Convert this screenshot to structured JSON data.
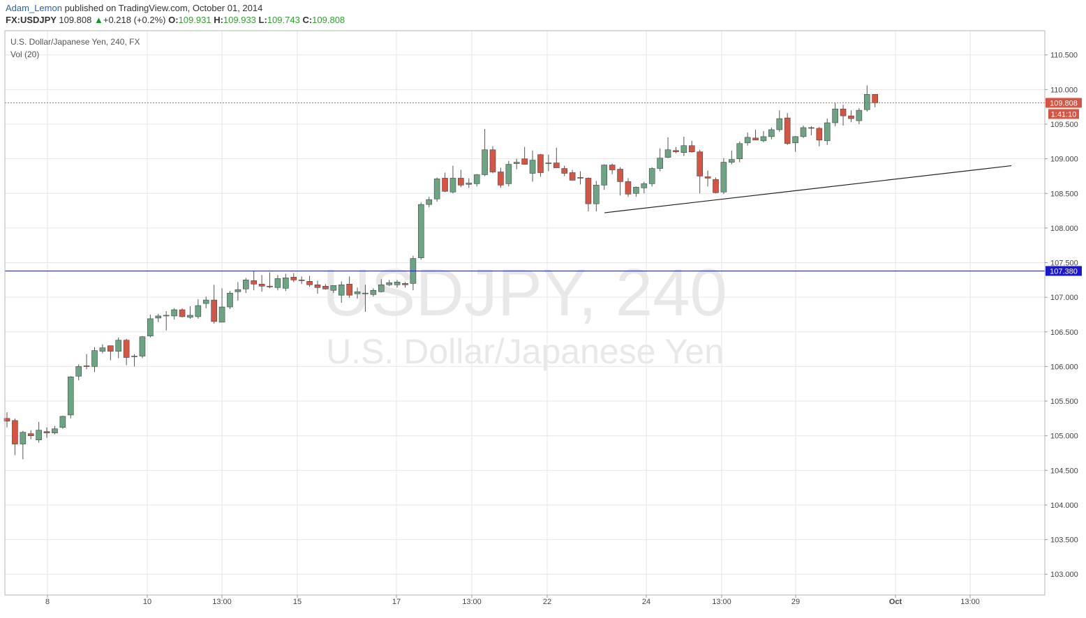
{
  "header": {
    "author": "Adam_Lemon",
    "published": "published on TradingView.com, October 01, 2014",
    "symbol": "FX:USDJPY",
    "last": "109.808",
    "change_arrow": "▲",
    "change": "+0.218 (+0.2%)",
    "o_label": "O:",
    "o_value": "109.931",
    "h_label": "H:",
    "h_value": "109.933",
    "l_label": "L:",
    "l_value": "109.743",
    "c_label": "C:",
    "c_value": "109.808"
  },
  "legend": {
    "title": "U.S. Dollar/Japanese Yen, 240, FX",
    "indicator": "Vol (20)"
  },
  "watermark": {
    "line1": "USDJPY, 240",
    "line2": "U.S. Dollar/Japanese Yen"
  },
  "colors": {
    "up": "#6ba583",
    "down": "#d75442",
    "grid": "#e6e6e6",
    "horizontal_line": "#1a1acc",
    "price_line": "#d75442"
  },
  "chart_data": {
    "type": "candlestick",
    "ylim": [
      102.7,
      110.85
    ],
    "y_ticks": [
      "103.000",
      "103.500",
      "104.000",
      "104.500",
      "105.000",
      "105.500",
      "106.000",
      "106.500",
      "107.000",
      "107.500",
      "108.000",
      "108.500",
      "109.000",
      "109.500",
      "110.000",
      "110.500"
    ],
    "x_ticks": [
      "8",
      "10",
      "13:00",
      "15",
      "17",
      "13:00",
      "22",
      "24",
      "13:00",
      "29",
      "Oct",
      "13:00"
    ],
    "last_price_label": "109.808",
    "countdown_label": "1:41:10",
    "horizontal_line": {
      "value": 107.38,
      "label": "107.380"
    },
    "trendline": {
      "from": [
        108.22
      ],
      "to": [
        108.9
      ]
    },
    "candles": [
      {
        "o": 105.25,
        "h": 105.34,
        "l": 105.12,
        "c": 105.21
      },
      {
        "o": 105.22,
        "h": 105.25,
        "l": 104.72,
        "c": 104.88
      },
      {
        "o": 104.88,
        "h": 105.07,
        "l": 104.66,
        "c": 105.05
      },
      {
        "o": 105.03,
        "h": 105.08,
        "l": 104.95,
        "c": 105.0
      },
      {
        "o": 104.94,
        "h": 105.2,
        "l": 104.9,
        "c": 105.08
      },
      {
        "o": 105.06,
        "h": 105.12,
        "l": 104.97,
        "c": 105.04
      },
      {
        "o": 105.04,
        "h": 105.14,
        "l": 105.02,
        "c": 105.1
      },
      {
        "o": 105.12,
        "h": 105.29,
        "l": 105.1,
        "c": 105.28
      },
      {
        "o": 105.3,
        "h": 105.86,
        "l": 105.25,
        "c": 105.85
      },
      {
        "o": 105.86,
        "h": 106.03,
        "l": 105.8,
        "c": 106.0
      },
      {
        "o": 106.01,
        "h": 106.18,
        "l": 105.96,
        "c": 106.0
      },
      {
        "o": 106.0,
        "h": 106.28,
        "l": 105.92,
        "c": 106.23
      },
      {
        "o": 106.22,
        "h": 106.32,
        "l": 106.19,
        "c": 106.27
      },
      {
        "o": 106.3,
        "h": 106.3,
        "l": 106.09,
        "c": 106.22
      },
      {
        "o": 106.22,
        "h": 106.42,
        "l": 106.12,
        "c": 106.38
      },
      {
        "o": 106.38,
        "h": 106.4,
        "l": 106.02,
        "c": 106.13
      },
      {
        "o": 106.14,
        "h": 106.18,
        "l": 106.0,
        "c": 106.15
      },
      {
        "o": 106.15,
        "h": 106.44,
        "l": 106.12,
        "c": 106.43
      },
      {
        "o": 106.44,
        "h": 106.75,
        "l": 106.42,
        "c": 106.69
      },
      {
        "o": 106.7,
        "h": 106.76,
        "l": 106.64,
        "c": 106.73
      },
      {
        "o": 106.73,
        "h": 106.8,
        "l": 106.52,
        "c": 106.74
      },
      {
        "o": 106.73,
        "h": 106.84,
        "l": 106.68,
        "c": 106.82
      },
      {
        "o": 106.82,
        "h": 106.84,
        "l": 106.71,
        "c": 106.72
      },
      {
        "o": 106.71,
        "h": 106.87,
        "l": 106.69,
        "c": 106.74
      },
      {
        "o": 106.72,
        "h": 106.97,
        "l": 106.69,
        "c": 106.88
      },
      {
        "o": 106.91,
        "h": 107.01,
        "l": 106.84,
        "c": 106.96
      },
      {
        "o": 106.96,
        "h": 107.18,
        "l": 106.62,
        "c": 106.65
      },
      {
        "o": 106.64,
        "h": 107.13,
        "l": 106.64,
        "c": 106.86
      },
      {
        "o": 106.86,
        "h": 107.09,
        "l": 106.83,
        "c": 107.06
      },
      {
        "o": 107.08,
        "h": 107.22,
        "l": 106.95,
        "c": 107.11
      },
      {
        "o": 107.12,
        "h": 107.28,
        "l": 107.06,
        "c": 107.25
      },
      {
        "o": 107.24,
        "h": 107.38,
        "l": 107.1,
        "c": 107.19
      },
      {
        "o": 107.19,
        "h": 107.32,
        "l": 107.08,
        "c": 107.16
      },
      {
        "o": 107.16,
        "h": 107.36,
        "l": 107.13,
        "c": 107.15
      },
      {
        "o": 107.14,
        "h": 107.32,
        "l": 107.1,
        "c": 107.27
      },
      {
        "o": 107.13,
        "h": 107.34,
        "l": 107.09,
        "c": 107.28
      },
      {
        "o": 107.29,
        "h": 107.35,
        "l": 107.22,
        "c": 107.25
      },
      {
        "o": 107.25,
        "h": 107.3,
        "l": 107.19,
        "c": 107.24
      },
      {
        "o": 107.23,
        "h": 107.31,
        "l": 107.15,
        "c": 107.18
      },
      {
        "o": 107.18,
        "h": 107.24,
        "l": 107.05,
        "c": 107.14
      },
      {
        "o": 107.16,
        "h": 107.19,
        "l": 107.11,
        "c": 107.12
      },
      {
        "o": 107.1,
        "h": 107.17,
        "l": 107.06,
        "c": 107.17
      },
      {
        "o": 107.03,
        "h": 107.23,
        "l": 106.92,
        "c": 107.18
      },
      {
        "o": 107.19,
        "h": 107.3,
        "l": 106.99,
        "c": 107.03
      },
      {
        "o": 107.05,
        "h": 107.14,
        "l": 106.98,
        "c": 107.08
      },
      {
        "o": 107.06,
        "h": 107.18,
        "l": 106.79,
        "c": 107.06
      },
      {
        "o": 107.04,
        "h": 107.13,
        "l": 107.01,
        "c": 107.1
      },
      {
        "o": 107.08,
        "h": 107.26,
        "l": 107.07,
        "c": 107.18
      },
      {
        "o": 107.18,
        "h": 107.25,
        "l": 107.16,
        "c": 107.21
      },
      {
        "o": 107.18,
        "h": 107.25,
        "l": 107.14,
        "c": 107.22
      },
      {
        "o": 107.2,
        "h": 107.22,
        "l": 107.14,
        "c": 107.18
      },
      {
        "o": 107.2,
        "h": 107.6,
        "l": 107.1,
        "c": 107.56
      },
      {
        "o": 107.57,
        "h": 108.37,
        "l": 107.54,
        "c": 108.34
      },
      {
        "o": 108.34,
        "h": 108.45,
        "l": 108.3,
        "c": 108.41
      },
      {
        "o": 108.42,
        "h": 108.73,
        "l": 108.38,
        "c": 108.71
      },
      {
        "o": 108.72,
        "h": 108.8,
        "l": 108.52,
        "c": 108.53
      },
      {
        "o": 108.52,
        "h": 108.9,
        "l": 108.5,
        "c": 108.72
      },
      {
        "o": 108.72,
        "h": 108.84,
        "l": 108.59,
        "c": 108.62
      },
      {
        "o": 108.63,
        "h": 108.72,
        "l": 108.58,
        "c": 108.65
      },
      {
        "o": 108.64,
        "h": 108.78,
        "l": 108.6,
        "c": 108.77
      },
      {
        "o": 108.77,
        "h": 109.43,
        "l": 108.75,
        "c": 109.13
      },
      {
        "o": 109.13,
        "h": 109.18,
        "l": 108.79,
        "c": 108.81
      },
      {
        "o": 108.81,
        "h": 108.87,
        "l": 108.58,
        "c": 108.62
      },
      {
        "o": 108.64,
        "h": 108.97,
        "l": 108.6,
        "c": 108.92
      },
      {
        "o": 108.93,
        "h": 109.0,
        "l": 108.85,
        "c": 108.95
      },
      {
        "o": 109.0,
        "h": 109.17,
        "l": 108.93,
        "c": 108.92
      },
      {
        "o": 108.79,
        "h": 109.12,
        "l": 108.67,
        "c": 108.98
      },
      {
        "o": 109.06,
        "h": 109.07,
        "l": 108.74,
        "c": 108.8
      },
      {
        "o": 108.93,
        "h": 109.06,
        "l": 108.82,
        "c": 108.94
      },
      {
        "o": 108.94,
        "h": 109.16,
        "l": 108.89,
        "c": 108.87
      },
      {
        "o": 108.86,
        "h": 108.9,
        "l": 108.75,
        "c": 108.79
      },
      {
        "o": 108.8,
        "h": 108.84,
        "l": 108.7,
        "c": 108.69
      },
      {
        "o": 108.73,
        "h": 108.82,
        "l": 108.63,
        "c": 108.72
      },
      {
        "o": 108.72,
        "h": 108.73,
        "l": 108.24,
        "c": 108.35
      },
      {
        "o": 108.35,
        "h": 108.68,
        "l": 108.24,
        "c": 108.62
      },
      {
        "o": 108.62,
        "h": 108.92,
        "l": 108.55,
        "c": 108.91
      },
      {
        "o": 108.91,
        "h": 108.93,
        "l": 108.78,
        "c": 108.84
      },
      {
        "o": 108.85,
        "h": 108.88,
        "l": 108.47,
        "c": 108.67
      },
      {
        "o": 108.67,
        "h": 108.72,
        "l": 108.45,
        "c": 108.49
      },
      {
        "o": 108.5,
        "h": 108.6,
        "l": 108.45,
        "c": 108.59
      },
      {
        "o": 108.58,
        "h": 108.67,
        "l": 108.5,
        "c": 108.64
      },
      {
        "o": 108.64,
        "h": 108.88,
        "l": 108.6,
        "c": 108.86
      },
      {
        "o": 108.86,
        "h": 109.15,
        "l": 108.82,
        "c": 109.01
      },
      {
        "o": 109.02,
        "h": 109.31,
        "l": 109.01,
        "c": 109.13
      },
      {
        "o": 109.12,
        "h": 109.17,
        "l": 109.08,
        "c": 109.1
      },
      {
        "o": 109.09,
        "h": 109.32,
        "l": 109.04,
        "c": 109.19
      },
      {
        "o": 109.19,
        "h": 109.26,
        "l": 109.09,
        "c": 109.1
      },
      {
        "o": 109.1,
        "h": 109.13,
        "l": 108.5,
        "c": 108.75
      },
      {
        "o": 108.74,
        "h": 108.83,
        "l": 108.6,
        "c": 108.72
      },
      {
        "o": 108.7,
        "h": 108.73,
        "l": 108.5,
        "c": 108.51
      },
      {
        "o": 108.52,
        "h": 109.01,
        "l": 108.49,
        "c": 108.95
      },
      {
        "o": 108.95,
        "h": 109.12,
        "l": 108.92,
        "c": 108.99
      },
      {
        "o": 109.0,
        "h": 109.25,
        "l": 108.95,
        "c": 109.22
      },
      {
        "o": 109.23,
        "h": 109.38,
        "l": 109.19,
        "c": 109.31
      },
      {
        "o": 109.3,
        "h": 109.42,
        "l": 109.27,
        "c": 109.27
      },
      {
        "o": 109.26,
        "h": 109.4,
        "l": 109.24,
        "c": 109.32
      },
      {
        "o": 109.32,
        "h": 109.45,
        "l": 109.28,
        "c": 109.42
      },
      {
        "o": 109.42,
        "h": 109.7,
        "l": 109.39,
        "c": 109.58
      },
      {
        "o": 109.59,
        "h": 109.66,
        "l": 109.2,
        "c": 109.22
      },
      {
        "o": 109.23,
        "h": 109.33,
        "l": 109.1,
        "c": 109.32
      },
      {
        "o": 109.32,
        "h": 109.48,
        "l": 109.3,
        "c": 109.45
      },
      {
        "o": 109.45,
        "h": 109.47,
        "l": 109.34,
        "c": 109.44
      },
      {
        "o": 109.44,
        "h": 109.46,
        "l": 109.18,
        "c": 109.27
      },
      {
        "o": 109.26,
        "h": 109.58,
        "l": 109.2,
        "c": 109.52
      },
      {
        "o": 109.52,
        "h": 109.81,
        "l": 109.47,
        "c": 109.72
      },
      {
        "o": 109.72,
        "h": 109.78,
        "l": 109.48,
        "c": 109.62
      },
      {
        "o": 109.62,
        "h": 109.7,
        "l": 109.53,
        "c": 109.58
      },
      {
        "o": 109.55,
        "h": 109.73,
        "l": 109.5,
        "c": 109.7
      },
      {
        "o": 109.71,
        "h": 110.06,
        "l": 109.68,
        "c": 109.93
      },
      {
        "o": 109.93,
        "h": 109.933,
        "l": 109.743,
        "c": 109.808
      }
    ]
  }
}
